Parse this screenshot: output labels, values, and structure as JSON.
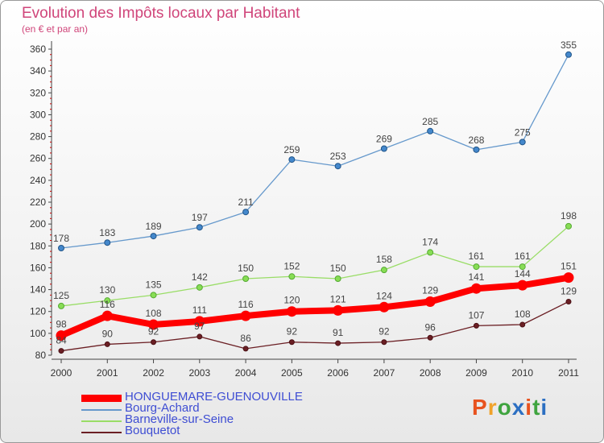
{
  "header": {
    "title": "Evolution des Impôts locaux par Habitant",
    "subtitle": "(en € et par an)"
  },
  "logo": {
    "text": "Proxiti",
    "colors": [
      "#e8531f",
      "#f0a22a",
      "#3fa43f",
      "#2c6fc2",
      "#e8531f",
      "#3fa43f",
      "#2c6fc2"
    ]
  },
  "chart_data": {
    "type": "line",
    "title": "Evolution des Impôts locaux par Habitant",
    "subtitle": "(en € et par an)",
    "xlabel": "",
    "ylabel": "",
    "x": [
      "2000",
      "2001",
      "2002",
      "2003",
      "2004",
      "2005",
      "2006",
      "2007",
      "2008",
      "2009",
      "2010",
      "2011"
    ],
    "ylim": [
      80,
      360
    ],
    "yticks": [
      80,
      100,
      120,
      140,
      160,
      180,
      200,
      220,
      240,
      260,
      280,
      300,
      320,
      340,
      360
    ],
    "grid": false,
    "legend_position": "bottom-left",
    "series": [
      {
        "name": "HONGUEMARE-GUENOUVILLE",
        "color": "#ff0000",
        "values": [
          98,
          116,
          108,
          111,
          116,
          120,
          121,
          124,
          129,
          141,
          144,
          151
        ]
      },
      {
        "name": "Bourg-Achard",
        "color": "#6699cc",
        "values": [
          178,
          183,
          189,
          197,
          211,
          259,
          253,
          269,
          285,
          268,
          275,
          355
        ]
      },
      {
        "name": "Barneville-sur-Seine",
        "color": "#99dd66",
        "values": [
          125,
          130,
          135,
          142,
          150,
          152,
          150,
          158,
          174,
          161,
          161,
          198
        ]
      },
      {
        "name": "Bouquetot",
        "color": "#6b1f24",
        "values": [
          84,
          90,
          92,
          97,
          86,
          92,
          91,
          92,
          96,
          107,
          108,
          129
        ]
      }
    ]
  }
}
